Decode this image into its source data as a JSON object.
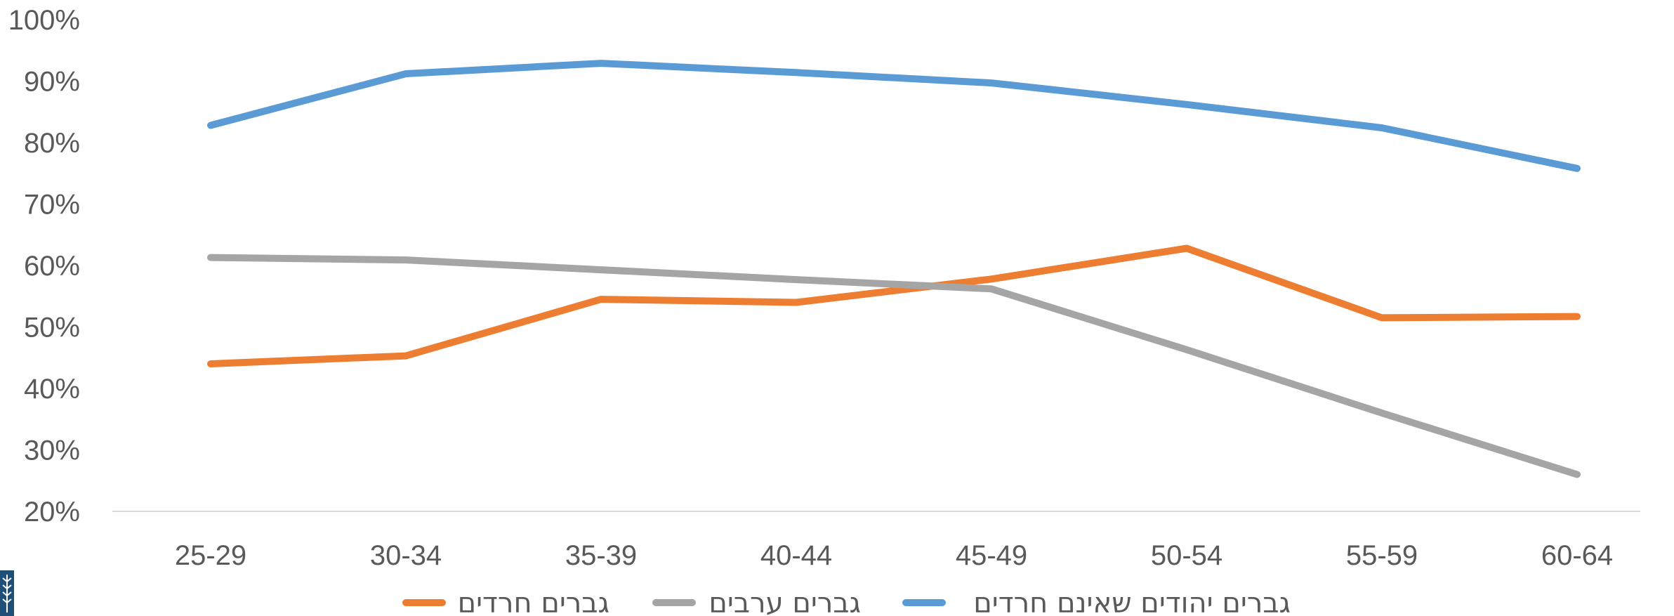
{
  "chart_data": {
    "type": "line",
    "title": "",
    "xlabel": "",
    "ylabel": "",
    "categories": [
      "25-29",
      "30-34",
      "35-39",
      "40-44",
      "45-49",
      "50-54",
      "55-59",
      "60-64"
    ],
    "y_ticks": [
      "20%",
      "30%",
      "40%",
      "50%",
      "60%",
      "70%",
      "80%",
      "90%",
      "100%"
    ],
    "ylim": [
      20,
      100
    ],
    "y_unit": "%",
    "grid": false,
    "legend_position": "bottom",
    "series": [
      {
        "name": "גברים חרדים",
        "color": "#ED7D31",
        "values": [
          44,
          45.3,
          54.5,
          54,
          57.8,
          62.8,
          51.5,
          51.7
        ]
      },
      {
        "name": "גברים ערבים",
        "color": "#A5A5A5",
        "values": [
          61.3,
          60.9,
          59.3,
          57.7,
          56.2,
          46.3,
          36,
          26
        ]
      },
      {
        "name": "גברים יהודים שאינם חרדים",
        "color": "#5B9BD5",
        "values": [
          82.8,
          91.2,
          92.9,
          91.4,
          89.7,
          86.2,
          82.4,
          75.8
        ]
      }
    ]
  }
}
